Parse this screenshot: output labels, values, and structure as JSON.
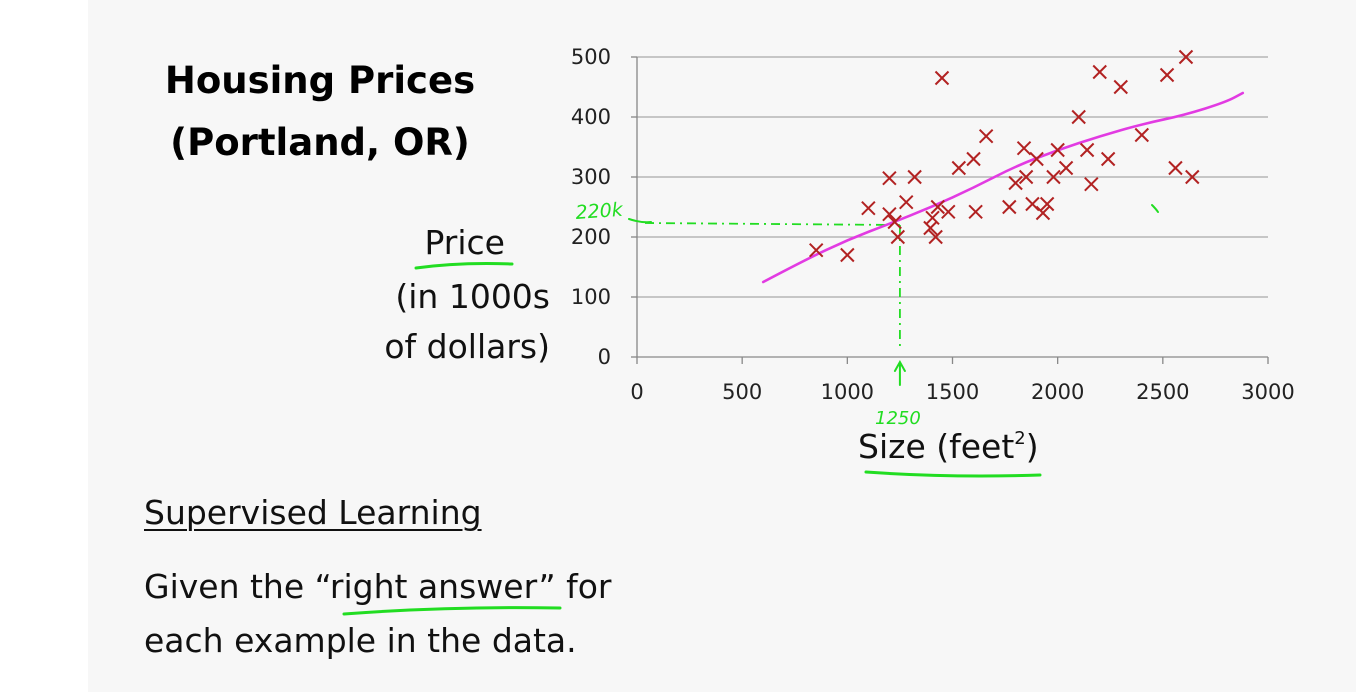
{
  "slide": {
    "title_line1": "Housing Prices",
    "title_line2": "(Portland, OR)",
    "ylabel_line1": "Price",
    "ylabel_line2": "(in 1000s",
    "ylabel_line3": "of dollars)",
    "xlabel_text": "Size (feet",
    "xlabel_sup": "2",
    "xlabel_close": ")",
    "heading": "Supervised Learning",
    "body_line1_pre": "Given the “",
    "body_line1_em": "right answer",
    "body_line1_post": "” for",
    "body_line2": "each example in the data."
  },
  "annotations": {
    "price_note": "220k",
    "size_note": "1250",
    "colors": {
      "ink": "#22dd22",
      "fit": "#e23be2",
      "marker": "#b22222"
    }
  },
  "chart_data": {
    "type": "scatter",
    "title": "Housing Prices (Portland, OR)",
    "xlabel": "Size (feet²)",
    "ylabel": "Price (in 1000s of dollars)",
    "xlim": [
      0,
      3000
    ],
    "ylim": [
      0,
      500
    ],
    "xticks": [
      0,
      500,
      1000,
      1500,
      2000,
      2500,
      3000
    ],
    "yticks": [
      0,
      100,
      200,
      300,
      400,
      500
    ],
    "grid": {
      "horizontal": true,
      "vertical": false
    },
    "legend": "none",
    "series": [
      {
        "marker": "x",
        "color": "#b22222",
        "points": [
          [
            852,
            178
          ],
          [
            1000,
            170
          ],
          [
            1100,
            248
          ],
          [
            1200,
            298
          ],
          [
            1200,
            238
          ],
          [
            1225,
            225
          ],
          [
            1240,
            200
          ],
          [
            1280,
            258
          ],
          [
            1320,
            300
          ],
          [
            1395,
            215
          ],
          [
            1405,
            232
          ],
          [
            1420,
            200
          ],
          [
            1430,
            250
          ],
          [
            1450,
            465
          ],
          [
            1480,
            242
          ],
          [
            1530,
            315
          ],
          [
            1600,
            330
          ],
          [
            1610,
            242
          ],
          [
            1660,
            368
          ],
          [
            1770,
            250
          ],
          [
            1800,
            290
          ],
          [
            1840,
            348
          ],
          [
            1850,
            300
          ],
          [
            1880,
            255
          ],
          [
            1900,
            330
          ],
          [
            1930,
            240
          ],
          [
            1950,
            255
          ],
          [
            1980,
            300
          ],
          [
            2000,
            345
          ],
          [
            2040,
            315
          ],
          [
            2100,
            400
          ],
          [
            2140,
            345
          ],
          [
            2160,
            288
          ],
          [
            2200,
            475
          ],
          [
            2240,
            330
          ],
          [
            2300,
            450
          ],
          [
            2400,
            370
          ],
          [
            2520,
            470
          ],
          [
            2560,
            315
          ],
          [
            2610,
            500
          ],
          [
            2640,
            300
          ]
        ]
      }
    ],
    "fit_curve": {
      "color": "#e23be2",
      "points": [
        [
          600,
          125
        ],
        [
          800,
          162
        ],
        [
          1000,
          195
        ],
        [
          1200,
          222
        ],
        [
          1400,
          250
        ],
        [
          1600,
          282
        ],
        [
          1800,
          318
        ],
        [
          2000,
          345
        ],
        [
          2200,
          368
        ],
        [
          2400,
          388
        ],
        [
          2600,
          403
        ],
        [
          2800,
          425
        ],
        [
          2880,
          440
        ]
      ]
    },
    "prediction": {
      "x": 1250,
      "y": 220
    }
  }
}
